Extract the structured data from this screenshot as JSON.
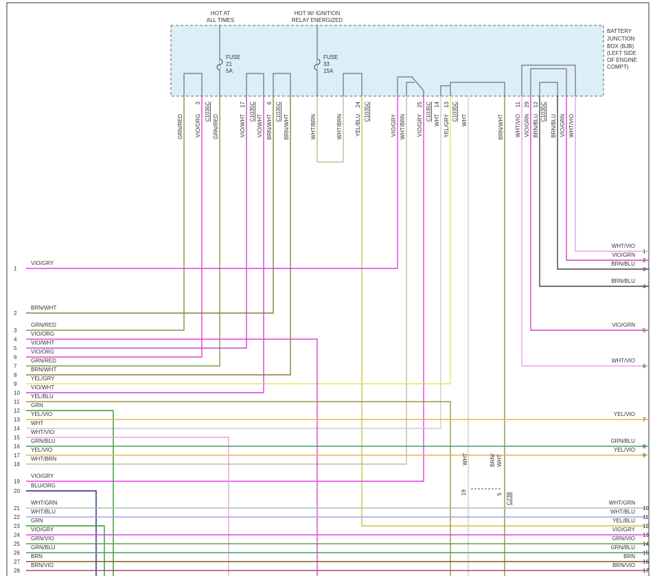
{
  "top_labels": [
    "HOT AT",
    "ALL TIMES",
    "HOT W/ IGNITION",
    "RELAY ENERGIZED"
  ],
  "box_label": [
    "BATTERY",
    "JUNCTION",
    "BOX (BJB)",
    "(LEFT SIDE",
    "OF ENGINE",
    "COMPT)"
  ],
  "fuses": [
    {
      "name": "FUSE",
      "number": "21",
      "rating": "5A"
    },
    {
      "name": "FUSE",
      "number": "33",
      "rating": "15A"
    }
  ],
  "wire_labels": [
    "GRN/RED",
    "VIO/ORG",
    "GRN/RED",
    "VIO/WHT",
    "VIO/WHT",
    "BRN/WHT",
    "BRN/WHT",
    "WHT/BRN",
    "WHT/BRN",
    "YEL/BLU",
    "VIO/GRY",
    "WHT/BRN",
    "VIO/GRY",
    "WHT",
    "YEL/GRY",
    "WHT",
    "BRN/WHT",
    "WHT/VIO",
    "VIO/GRN",
    "BRN/BLU",
    "BRN/BLU",
    "VIO/GRN",
    "WHT/VIO"
  ],
  "pin_numbers": [
    "3",
    "17",
    "6",
    "24",
    "25",
    "14",
    "13",
    "11",
    "29",
    "12"
  ],
  "connectors": [
    "C1035C",
    "C1035C",
    "C1035C",
    "C1035C",
    "C1035C",
    "C1035C",
    "C1035C"
  ],
  "left_rows": [
    {
      "number": "1",
      "label": "VIO/GRY"
    },
    {
      "number": "2",
      "label": "BRN/WHT"
    },
    {
      "number": "3",
      "label": "GRN/RED"
    },
    {
      "number": "4",
      "label": "VIO/ORG"
    },
    {
      "number": "5",
      "label": "VIO/WHT"
    },
    {
      "number": "6",
      "label": "VIO/ORG"
    },
    {
      "number": "7",
      "label": "GRN/RED"
    },
    {
      "number": "8",
      "label": "BRN/WHT"
    },
    {
      "number": "9",
      "label": "YEL/GRY"
    },
    {
      "number": "10",
      "label": "VIO/WHT"
    },
    {
      "number": "11",
      "label": "YEL/BLU"
    },
    {
      "number": "12",
      "label": "GRN"
    },
    {
      "number": "13",
      "label": "YEL/VIO"
    },
    {
      "number": "14",
      "label": "WHT"
    },
    {
      "number": "15",
      "label": "WHT/VIO"
    },
    {
      "number": "16",
      "label": "GRN/BLU"
    },
    {
      "number": "17",
      "label": "YEL/VIO"
    },
    {
      "number": "18",
      "label": "WHT/BRN"
    },
    {
      "number": "19",
      "label": "VIO/GRY"
    },
    {
      "number": "20",
      "label": "BLU/ORG"
    },
    {
      "number": "21",
      "label": "WHT/GRN"
    },
    {
      "number": "22",
      "label": "WHT/BLU"
    },
    {
      "number": "23",
      "label": "GRN"
    },
    {
      "number": "24",
      "label": "VIO/GRY"
    },
    {
      "number": "25",
      "label": "GRN/VIO"
    },
    {
      "number": "26",
      "label": "GRN/BLU"
    },
    {
      "number": "27",
      "label": "BRN"
    },
    {
      "number": "28",
      "label": "BRN/VIO"
    }
  ],
  "right_rows": [
    {
      "label": "WHT/VIO",
      "number": "1"
    },
    {
      "label": "VIO/GRN",
      "number": "2"
    },
    {
      "label": "BRN/BLU",
      "number": "3"
    },
    {
      "label": "BRN/BLU",
      "number": "4"
    },
    {
      "label": "VIO/GRN",
      "number": "5"
    },
    {
      "label": "WHT/VIO",
      "number": "6"
    },
    {
      "label": "YEL/VIO",
      "number": "7"
    },
    {
      "label": "GRN/BLU",
      "number": "8"
    },
    {
      "label": "YEL/VIO",
      "number": "9"
    },
    {
      "label": "WHT/GRN",
      "number": "10"
    },
    {
      "label": "WHT/BLU",
      "number": "11"
    },
    {
      "label": "YEL/BLU",
      "number": "12"
    },
    {
      "label": "VIO/GRY",
      "number": "13"
    },
    {
      "label": "GRN/VIO",
      "number": "14"
    },
    {
      "label": "GRN/BLU",
      "number": "15"
    },
    {
      "label": "BRN",
      "number": "16"
    },
    {
      "label": "BRN/VIO",
      "number": "17"
    }
  ],
  "c238": {
    "wire_left": "WHT",
    "wire_right_1": "BRN/",
    "wire_right_2": "WHT",
    "pin_left": "19",
    "pin_right": "5",
    "connector": "C238"
  }
}
